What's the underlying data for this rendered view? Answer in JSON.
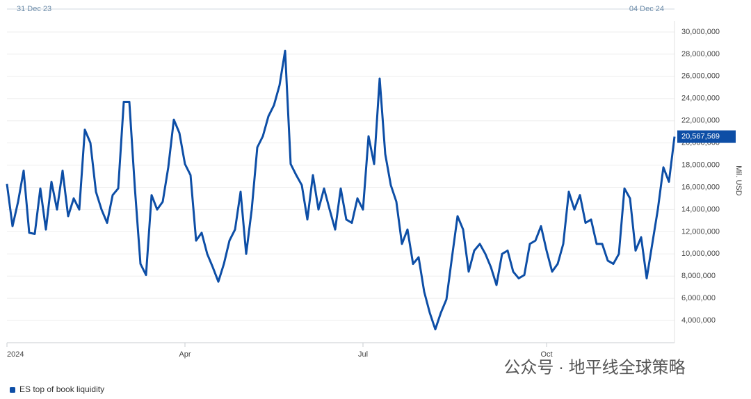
{
  "chart_data": {
    "type": "line",
    "range_start": "31 Dec 23",
    "range_end": "04 Dec 24",
    "y_axis_label": "Mil. USD",
    "watermark": "公众号 · 地平线全球策略",
    "grid": true,
    "ylim": [
      2000000,
      31000000
    ],
    "yticks": [
      {
        "value": 4000000,
        "label": "4,000,000"
      },
      {
        "value": 6000000,
        "label": "6,000,000"
      },
      {
        "value": 8000000,
        "label": "8,000,000"
      },
      {
        "value": 10000000,
        "label": "10,000,000"
      },
      {
        "value": 12000000,
        "label": "12,000,000"
      },
      {
        "value": 14000000,
        "label": "14,000,000"
      },
      {
        "value": 16000000,
        "label": "16,000,000"
      },
      {
        "value": 18000000,
        "label": "18,000,000"
      },
      {
        "value": 20000000,
        "label": "20,000,000"
      },
      {
        "value": 22000000,
        "label": "22,000,000"
      },
      {
        "value": 24000000,
        "label": "24,000,000"
      },
      {
        "value": 26000000,
        "label": "26,000,000"
      },
      {
        "value": 28000000,
        "label": "28,000,000"
      },
      {
        "value": 30000000,
        "label": "30,000,000"
      }
    ],
    "categories": [
      "2024",
      null,
      null,
      null,
      null,
      null,
      null,
      null,
      null,
      null,
      null,
      null,
      null,
      null,
      null,
      null,
      null,
      null,
      null,
      null,
      null,
      null,
      null,
      null,
      null,
      null,
      null,
      null,
      null,
      null,
      null,
      null,
      "Apr",
      null,
      null,
      null,
      null,
      null,
      null,
      null,
      null,
      null,
      null,
      null,
      null,
      null,
      null,
      null,
      null,
      null,
      null,
      null,
      null,
      null,
      null,
      null,
      null,
      null,
      null,
      null,
      null,
      null,
      null,
      null,
      "Jul",
      null,
      null,
      null,
      null,
      null,
      null,
      null,
      null,
      null,
      null,
      null,
      null,
      null,
      null,
      null,
      null,
      null,
      null,
      null,
      null,
      null,
      null,
      null,
      null,
      null,
      null,
      null,
      null,
      null,
      null,
      null,
      null,
      "Oct",
      null,
      null,
      null,
      null,
      null,
      null,
      null,
      null,
      null,
      null,
      null,
      null,
      null,
      null,
      null,
      null,
      null,
      null,
      null,
      null,
      null,
      null,
      null
    ],
    "series": [
      {
        "name": "ES top of book liquidity",
        "color": "#0d4ea6",
        "values": [
          16300000,
          12500000,
          14700000,
          17500000,
          11900000,
          11800000,
          15900000,
          12200000,
          16500000,
          14000000,
          17500000,
          13400000,
          15000000,
          14000000,
          21200000,
          20000000,
          15600000,
          14000000,
          12800000,
          15300000,
          15900000,
          23700000,
          23700000,
          15900000,
          9100000,
          8100000,
          15300000,
          14000000,
          14700000,
          17800000,
          22100000,
          20900000,
          18100000,
          17100000,
          11200000,
          11900000,
          10000000,
          8800000,
          7500000,
          9100000,
          11200000,
          12200000,
          15600000,
          10000000,
          14000000,
          19600000,
          20600000,
          22400000,
          23400000,
          25200000,
          28300000,
          18100000,
          17100000,
          16200000,
          13100000,
          17100000,
          14000000,
          15900000,
          14000000,
          12200000,
          15900000,
          13100000,
          12800000,
          15000000,
          14000000,
          20600000,
          18100000,
          25800000,
          19000000,
          16200000,
          14700000,
          10900000,
          12200000,
          9100000,
          9700000,
          6600000,
          4700000,
          3200000,
          4700000,
          5900000,
          9700000,
          13400000,
          12200000,
          8400000,
          10300000,
          10900000,
          10000000,
          8800000,
          7200000,
          10000000,
          10300000,
          8400000,
          7800000,
          8100000,
          10900000,
          11200000,
          12500000,
          10300000,
          8400000,
          9100000,
          10900000,
          15600000,
          14000000,
          15300000,
          12800000,
          13100000,
          10900000,
          10900000,
          9400000,
          9100000,
          10000000,
          15900000,
          15000000,
          10300000,
          11500000,
          7800000,
          10900000,
          14000000,
          17800000,
          16500000,
          20567569
        ],
        "value_labels": [
          null,
          null,
          null,
          null,
          null,
          null,
          null,
          null,
          null,
          null,
          null,
          null,
          null,
          null,
          null,
          null,
          null,
          null,
          null,
          null,
          null,
          null,
          null,
          null,
          null,
          null,
          null,
          null,
          null,
          null,
          null,
          null,
          null,
          null,
          null,
          null,
          null,
          null,
          null,
          null,
          null,
          null,
          null,
          null,
          null,
          null,
          null,
          null,
          null,
          null,
          null,
          null,
          null,
          null,
          null,
          null,
          null,
          null,
          null,
          null,
          null,
          null,
          null,
          null,
          null,
          null,
          null,
          null,
          null,
          null,
          null,
          null,
          null,
          null,
          null,
          null,
          null,
          null,
          null,
          null,
          null,
          null,
          null,
          null,
          null,
          null,
          null,
          null,
          null,
          null,
          null,
          null,
          null,
          null,
          null,
          null,
          null,
          null,
          null,
          null,
          null,
          null,
          null,
          null,
          null,
          null,
          null,
          null,
          null,
          null,
          null,
          null,
          null,
          null,
          null,
          null,
          null,
          null,
          null,
          null,
          "20,567,569"
        ]
      }
    ]
  }
}
